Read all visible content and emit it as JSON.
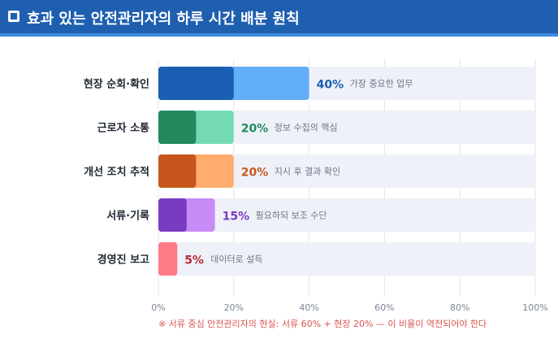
{
  "header": {
    "icon": "square-icon",
    "title": "효과 있는 안전관리자의 하루 시간 배분 원칙"
  },
  "chart_data": {
    "type": "bar",
    "orientation": "horizontal",
    "categories": [
      "현장 순회·확인",
      "근로자 소통",
      "개선 조치 추적",
      "서류·기록",
      "경영진 보고"
    ],
    "values": [
      40,
      20,
      20,
      15,
      5
    ],
    "value_labels": [
      "40%",
      "20%",
      "20%",
      "15%",
      "5%"
    ],
    "annotations": [
      "가장 중요한 업무",
      "정보 수집의 핵심",
      "지시 후 결과 확인",
      "필요하되 보조 수단",
      "데이터로 설득"
    ],
    "colors": [
      {
        "dark": "#1a5fb4",
        "light": "#62aef7",
        "text": "#1a5fb4"
      },
      {
        "dark": "#228a5e",
        "light": "#74dbb3",
        "text": "#228a5e"
      },
      {
        "dark": "#c8561c",
        "light": "#ffac6e",
        "text": "#c8561c"
      },
      {
        "dark": "#7a3bc3",
        "light": "#c88bf6",
        "text": "#7a3bc3"
      },
      {
        "dark": "#ff7a87",
        "light": "#ff7a87",
        "text": "#c0293a"
      }
    ],
    "xlim": [
      0,
      100
    ],
    "xticks": [
      "0%",
      "20%",
      "40%",
      "60%",
      "80%",
      "100%"
    ],
    "track_color": "#eef1f8",
    "grid": true
  },
  "footnote": "※ 서류 중심 안전관리자의 현실: 서류 60% + 현장 20% — 이 비율이 역전되어야 한다"
}
